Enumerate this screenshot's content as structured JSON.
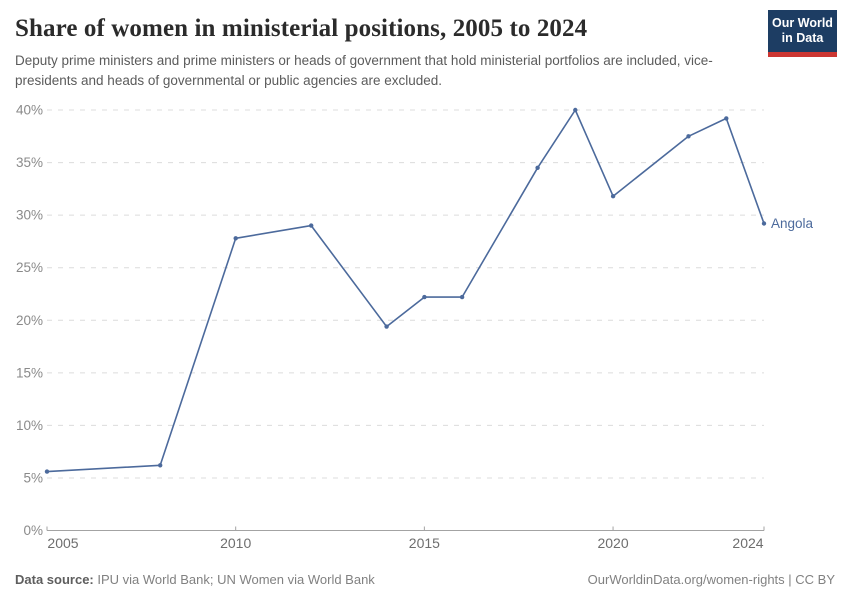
{
  "header": {
    "title": "Share of women in ministerial positions, 2005 to 2024",
    "subtitle": "Deputy prime ministers and prime ministers or heads of government that hold ministerial portfolios are included, vice-presidents and heads of governmental or public agencies are excluded."
  },
  "logo": {
    "line1": "Our World",
    "line2": "in Data",
    "bg_color": "#1d3d63",
    "accent_color": "#cc3632"
  },
  "footer": {
    "data_source_label": "Data source:",
    "data_source_value": "IPU via World Bank; UN Women via World Bank",
    "link_text": "OurWorldinData.org/women-rights",
    "separator": " | ",
    "license": "CC BY"
  },
  "chart_data": {
    "type": "line",
    "title": "Share of women in ministerial positions, 2005 to 2024",
    "xlabel": "",
    "ylabel": "",
    "x_range": [
      2005,
      2024
    ],
    "y_range": [
      0,
      40
    ],
    "grid": "dashed horizontal",
    "legend_position": "end-of-line label",
    "x_ticks": [
      {
        "value": 2005,
        "label": "2005"
      },
      {
        "value": 2010,
        "label": "2010"
      },
      {
        "value": 2015,
        "label": "2015"
      },
      {
        "value": 2020,
        "label": "2020"
      },
      {
        "value": 2024,
        "label": "2024"
      }
    ],
    "y_ticks": [
      {
        "value": 0,
        "label": "0%"
      },
      {
        "value": 5,
        "label": "5%"
      },
      {
        "value": 10,
        "label": "10%"
      },
      {
        "value": 15,
        "label": "15%"
      },
      {
        "value": 20,
        "label": "20%"
      },
      {
        "value": 25,
        "label": "25%"
      },
      {
        "value": 30,
        "label": "30%"
      },
      {
        "value": 35,
        "label": "35%"
      },
      {
        "value": 40,
        "label": "40%"
      }
    ],
    "series": [
      {
        "name": "Angola",
        "color": "#4C6A9C",
        "points": [
          [
            2005,
            5.6
          ],
          [
            2008,
            6.2
          ],
          [
            2010,
            27.8
          ],
          [
            2012,
            29.0
          ],
          [
            2014,
            19.4
          ],
          [
            2015,
            22.2
          ],
          [
            2016,
            22.2
          ],
          [
            2018,
            34.5
          ],
          [
            2019,
            40.0
          ],
          [
            2020,
            31.8
          ],
          [
            2022,
            37.5
          ],
          [
            2023,
            39.2
          ],
          [
            2024,
            29.2
          ]
        ]
      }
    ]
  }
}
